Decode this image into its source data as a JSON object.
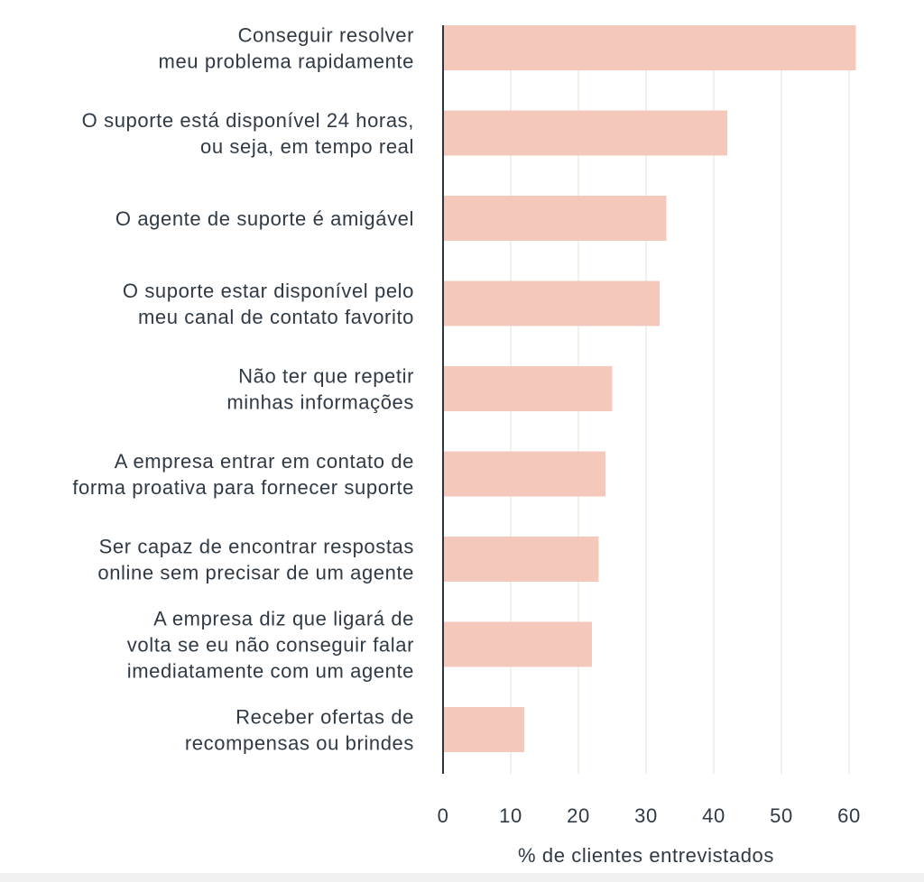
{
  "chart_data": {
    "type": "bar",
    "orientation": "horizontal",
    "categories": [
      [
        "Conseguir resolver",
        "meu problema rapidamente"
      ],
      [
        "O suporte está disponível 24 horas,",
        "ou seja, em tempo real"
      ],
      [
        "O agente de suporte é amigável"
      ],
      [
        "O suporte estar disponível pelo",
        "meu canal de contato favorito"
      ],
      [
        "Não ter que repetir",
        "minhas informações"
      ],
      [
        "A empresa entrar em contato de",
        "forma proativa para fornecer suporte"
      ],
      [
        "Ser capaz de encontrar respostas",
        "online sem precisar de um agente"
      ],
      [
        "A empresa diz que ligará de",
        "volta se eu não conseguir falar",
        "imediatamente com um agente"
      ],
      [
        "Receber ofertas de",
        "recompensas ou brindes"
      ]
    ],
    "values": [
      61,
      42,
      33,
      32,
      25,
      24,
      23,
      22,
      12
    ],
    "xlabel": "% de clientes entrevistados",
    "ylabel": "",
    "title": "",
    "xlim": [
      0,
      60
    ],
    "xticks": [
      0,
      10,
      20,
      30,
      40,
      50,
      60
    ],
    "grid": true,
    "legend": "none",
    "colors": {
      "bar": "#f4c9bc",
      "grid": "#eeebe0",
      "axis": "#2b3640",
      "text": "#2f3a44"
    }
  }
}
